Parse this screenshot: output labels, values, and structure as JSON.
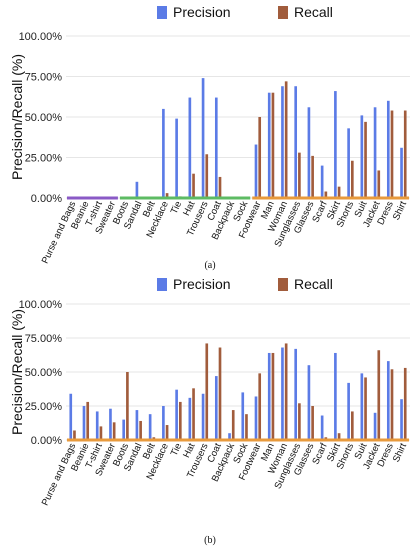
{
  "colors": {
    "precision": "#5B7BE6",
    "recall": "#A15C3C",
    "purple_baseline": "#8A5AC6",
    "green_baseline": "#5DBB63",
    "orange_baseline": "#E89A3C",
    "grid": "#e6e6e6"
  },
  "chart_data": [
    {
      "type": "bar",
      "panel_label": "(a)",
      "ylabel": "Precision/Recall (%)",
      "ylim": [
        0,
        100
      ],
      "yticks": [
        "0.00%",
        "25.00%",
        "50.00%",
        "75.00%",
        "100.00%"
      ],
      "grid": true,
      "legend_position": "top-right",
      "categories": [
        "Purse and Bags",
        "Beanie",
        "T-shirt",
        "Sweater",
        "Boots",
        "Sandal",
        "Belt",
        "Necklace",
        "Tie",
        "Hat",
        "Trousers",
        "Coat",
        "Backpack",
        "Sock",
        "Footwear",
        "Man",
        "Woman",
        "Sunglasses",
        "Glasses",
        "Scarf",
        "Skirt",
        "Shorts",
        "Suit",
        "Jacket",
        "Dress",
        "Shirt"
      ],
      "series": [
        {
          "name": "Precision",
          "values": [
            0,
            0,
            0,
            0,
            0,
            10,
            0,
            55,
            49,
            62,
            74,
            62,
            0,
            0,
            33,
            65,
            69,
            69,
            56,
            20,
            66,
            43,
            51,
            56,
            60,
            31
          ]
        },
        {
          "name": "Recall",
          "values": [
            0,
            0,
            0,
            0,
            0,
            0,
            0,
            3,
            1,
            15,
            27,
            13,
            0,
            0,
            50,
            65,
            72,
            28,
            26,
            4,
            7,
            23,
            47,
            17,
            54,
            54
          ]
        }
      ],
      "baseline_segments": [
        {
          "from": 0,
          "to": 3,
          "color": "purple_baseline"
        },
        {
          "from": 4,
          "to": 13,
          "color": "green_baseline"
        },
        {
          "from": 14,
          "to": 25,
          "color": "orange_baseline"
        }
      ]
    },
    {
      "type": "bar",
      "panel_label": "(b)",
      "ylabel": "Precision/Recall (%)",
      "ylim": [
        0,
        100
      ],
      "yticks": [
        "0.00%",
        "25.00%",
        "50.00%",
        "75.00%",
        "100.00%"
      ],
      "grid": true,
      "legend_position": "top-right",
      "categories": [
        "Purse and Bags",
        "Beanie",
        "T-shirt",
        "Sweater",
        "Boots",
        "Sandal",
        "Belt",
        "Necklace",
        "Tie",
        "Hat",
        "Trousers",
        "Coat",
        "Backpack",
        "Sock",
        "Footwear",
        "Man",
        "Woman",
        "Sunglasses",
        "Glasses",
        "Scarf",
        "Skirt",
        "Shorts",
        "Suit",
        "Jacket",
        "Dress",
        "Shirt"
      ],
      "series": [
        {
          "name": "Precision",
          "values": [
            34,
            25,
            21,
            23,
            15,
            22,
            19,
            25,
            37,
            31,
            34,
            47,
            5,
            35,
            32,
            64,
            68,
            67,
            55,
            18,
            64,
            42,
            49,
            20,
            58,
            30
          ]
        },
        {
          "name": "Recall",
          "values": [
            7,
            28,
            10,
            13,
            50,
            14,
            2,
            11,
            28,
            38,
            71,
            68,
            22,
            19,
            49,
            64,
            71,
            27,
            25,
            2,
            5,
            21,
            46,
            66,
            52,
            53
          ]
        }
      ],
      "baseline_segments": [
        {
          "from": 0,
          "to": 25,
          "color": "orange_baseline"
        }
      ]
    }
  ]
}
